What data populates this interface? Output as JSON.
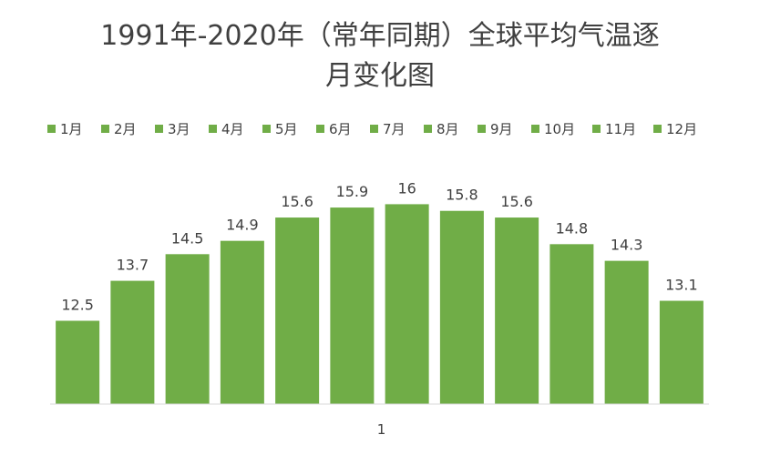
{
  "chart_data": {
    "type": "bar",
    "title_line1": "1991年-2020年（常年同期）全球平均气温逐",
    "title_line2": "月变化图",
    "categories": [
      "1"
    ],
    "series": [
      {
        "name": "1月",
        "values": [
          12.5
        ]
      },
      {
        "name": "2月",
        "values": [
          13.7
        ]
      },
      {
        "name": "3月",
        "values": [
          14.5
        ]
      },
      {
        "name": "4月",
        "values": [
          14.9
        ]
      },
      {
        "name": "5月",
        "values": [
          15.6
        ]
      },
      {
        "name": "6月",
        "values": [
          15.9
        ]
      },
      {
        "name": "7月",
        "values": [
          16
        ]
      },
      {
        "name": "8月",
        "values": [
          15.8
        ]
      },
      {
        "name": "9月",
        "values": [
          15.6
        ]
      },
      {
        "name": "10月",
        "values": [
          14.8
        ]
      },
      {
        "name": "11月",
        "values": [
          14.3
        ]
      },
      {
        "name": "12月",
        "values": [
          13.1
        ]
      }
    ],
    "data_labels": [
      "12.5",
      "13.7",
      "14.5",
      "14.9",
      "15.6",
      "15.9",
      "16",
      "15.8",
      "15.6",
      "14.8",
      "14.3",
      "13.1"
    ],
    "ylim": [
      10,
      16.6
    ],
    "grid": false,
    "legend_position": "top",
    "bar_color": "#70AD47"
  }
}
